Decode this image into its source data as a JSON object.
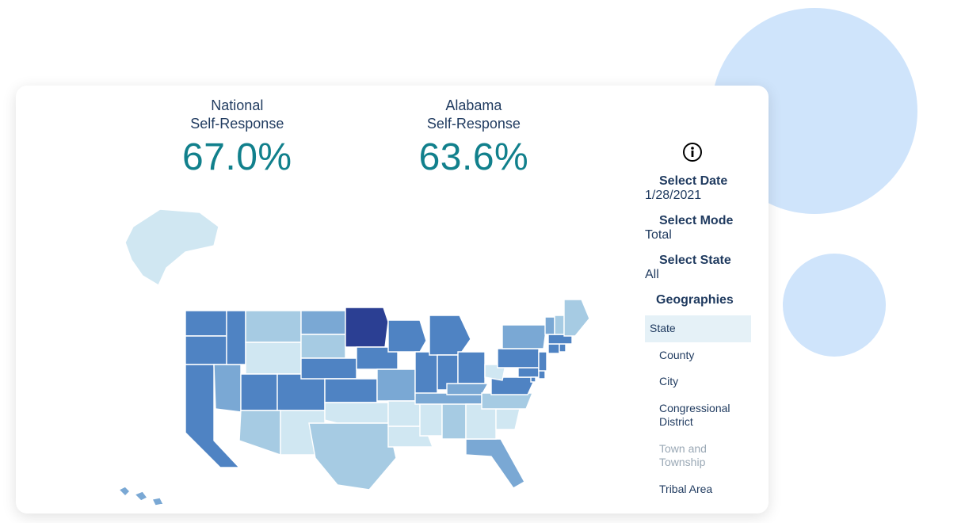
{
  "decor": {
    "circle_color": "#cfe4fb"
  },
  "stats": {
    "national": {
      "label1": "National",
      "label2": "Self-Response",
      "value": "67.0%"
    },
    "state": {
      "label1": "Alabama",
      "label2": "Self-Response",
      "value": "63.6%"
    }
  },
  "map": {
    "type": "choropleth",
    "palette": {
      "c1": "#d0e7f2",
      "c2": "#a6cbe3",
      "c3": "#7aa8d4",
      "c4": "#4f83c3",
      "c5": "#2b3f93"
    },
    "stroke": "#ffffff",
    "states": {
      "AK": "c1",
      "HI": "c3",
      "WA": "c4",
      "OR": "c4",
      "CA": "c4",
      "NV": "c3",
      "ID": "c4",
      "UT": "c4",
      "AZ": "c2",
      "MT": "c2",
      "WY": "c1",
      "CO": "c4",
      "NM": "c1",
      "ND": "c3",
      "SD": "c2",
      "NE": "c4",
      "KS": "c4",
      "OK": "c1",
      "TX": "c2",
      "MN": "c5",
      "IA": "c4",
      "MO": "c3",
      "AR": "c1",
      "LA": "c1",
      "WI": "c4",
      "IL": "c4",
      "MS": "c1",
      "TN": "c3",
      "AL": "c2",
      "MI": "c4",
      "IN": "c4",
      "OH": "c4",
      "KY": "c3",
      "FL": "c3",
      "GA": "c1",
      "SC": "c1",
      "NC": "c2",
      "VA": "c4",
      "WV": "c1",
      "MD": "c4",
      "DE": "c4",
      "DC": "c4",
      "PA": "c4",
      "NJ": "c4",
      "NY": "c3",
      "CT": "c4",
      "RI": "c4",
      "MA": "c4",
      "VT": "c3",
      "NH": "c2",
      "ME": "c2"
    }
  },
  "sidebar": {
    "info_icon": "info-icon",
    "date_label": "Select Date",
    "date_value": "1/28/2021",
    "mode_label": "Select Mode",
    "mode_value": "Total",
    "state_label": "Select State",
    "state_value": "All",
    "geo_label": "Geographies",
    "geo_items": [
      {
        "label": "State",
        "selected": true,
        "disabled": false
      },
      {
        "label": "County",
        "selected": false,
        "disabled": false
      },
      {
        "label": "City",
        "selected": false,
        "disabled": false
      },
      {
        "label": "Congressional District",
        "selected": false,
        "disabled": false
      },
      {
        "label": "Town and Township",
        "selected": false,
        "disabled": true
      },
      {
        "label": "Tribal Area",
        "selected": false,
        "disabled": false
      }
    ]
  },
  "colors": {
    "text_dark": "#1f3a5f",
    "stat_value": "#11808c"
  }
}
